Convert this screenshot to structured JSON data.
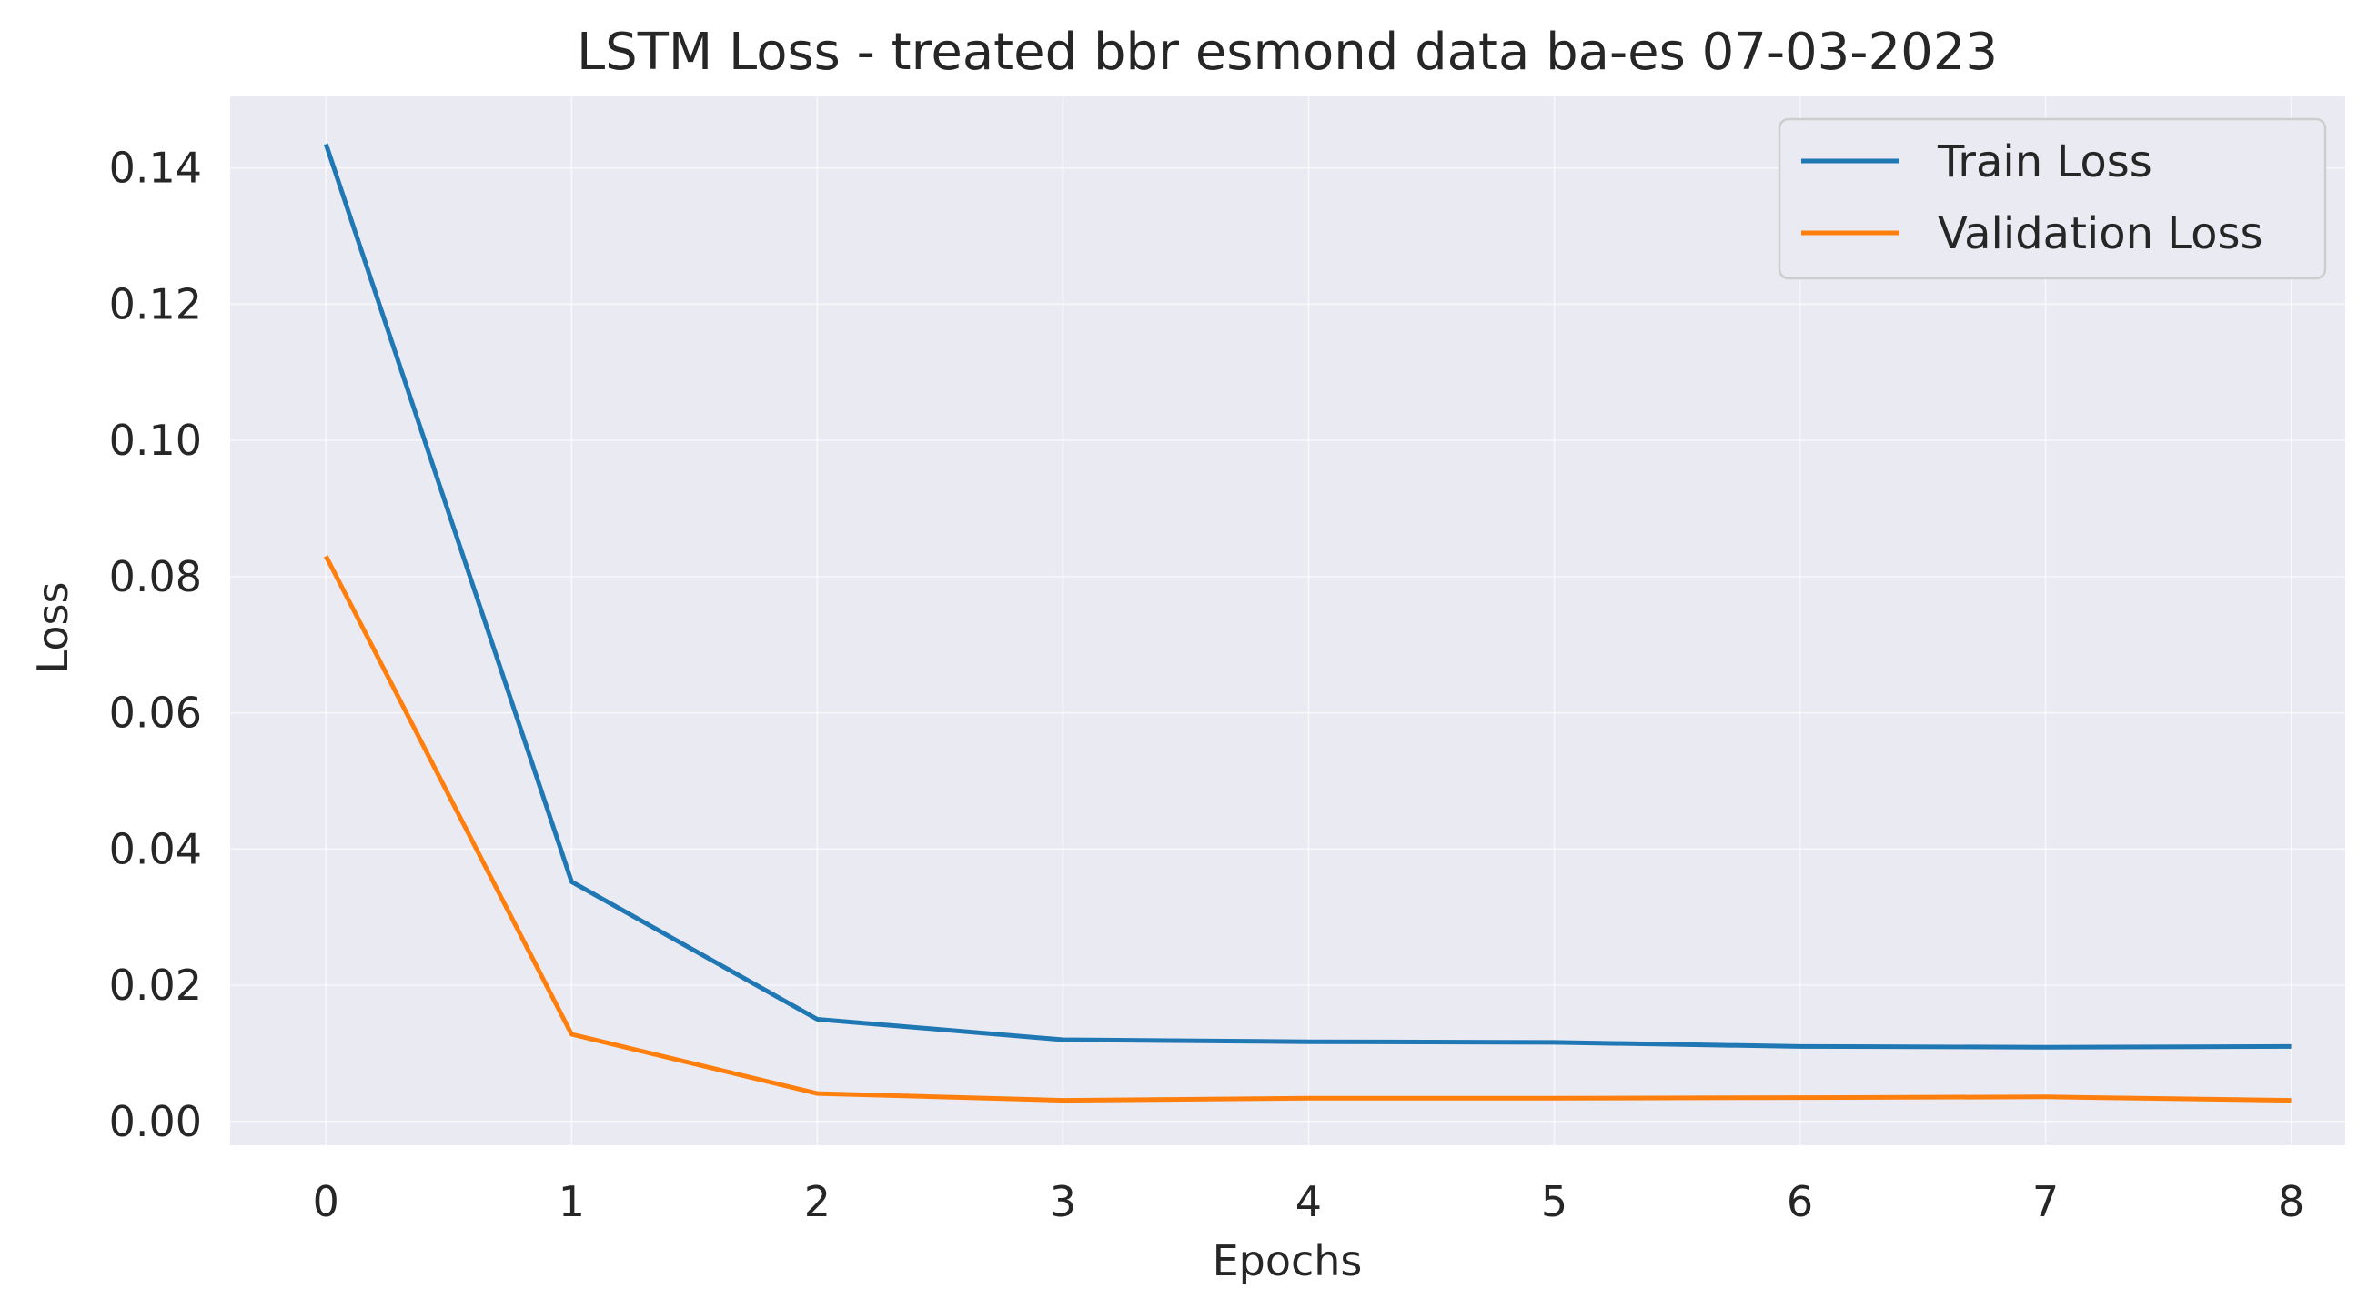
{
  "chart_data": {
    "type": "line",
    "title": "LSTM Loss - treated bbr esmond data ba-es 07-03-2023",
    "xlabel": "Epochs",
    "ylabel": "Loss",
    "x": [
      0,
      1,
      2,
      3,
      4,
      5,
      6,
      7,
      8
    ],
    "xlim": [
      -0.39,
      8.22
    ],
    "ylim": [
      -0.0035,
      0.1505
    ],
    "xticks": [
      "0",
      "1",
      "2",
      "3",
      "4",
      "5",
      "6",
      "7",
      "8"
    ],
    "yticks": [
      "0.00",
      "0.02",
      "0.04",
      "0.06",
      "0.08",
      "0.10",
      "0.12",
      "0.14"
    ],
    "grid": true,
    "legend_position": "top-right",
    "background_color": "#eaeaf2",
    "series": [
      {
        "name": "Train Loss",
        "color": "#1f77b4",
        "values": [
          0.1435,
          0.0352,
          0.015,
          0.012,
          0.0117,
          0.0116,
          0.011,
          0.0109,
          0.011
        ]
      },
      {
        "name": "Validation Loss",
        "color": "#ff7f0e",
        "values": [
          0.083,
          0.0128,
          0.0041,
          0.0031,
          0.0034,
          0.0034,
          0.0035,
          0.0036,
          0.0031
        ]
      }
    ]
  }
}
